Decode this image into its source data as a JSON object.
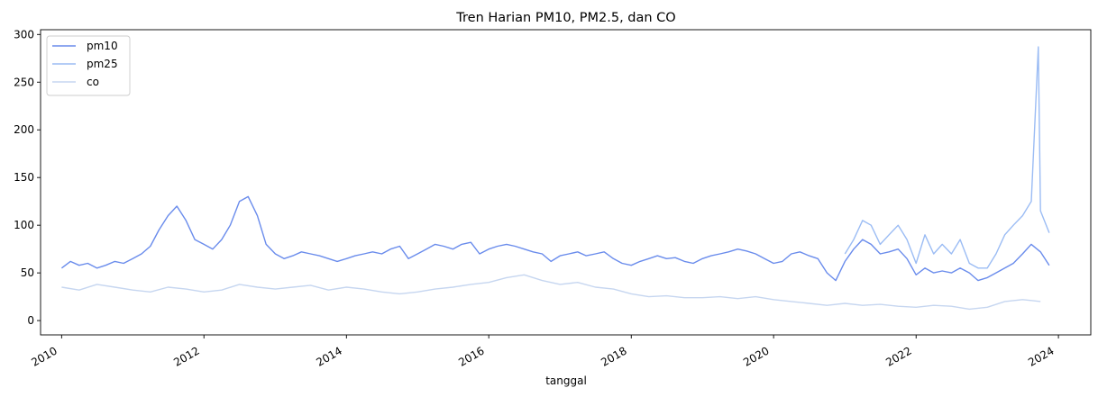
{
  "chart_data": {
    "type": "line",
    "title": "Tren Harian PM10, PM2.5, dan CO",
    "xlabel": "tanggal",
    "ylabel": "",
    "xlim": [
      "2009-09-15",
      "2024-06-15"
    ],
    "ylim": [
      -15,
      305
    ],
    "x_ticks": [
      "2010",
      "2012",
      "2014",
      "2016",
      "2018",
      "2020",
      "2022",
      "2024"
    ],
    "y_ticks": [
      0,
      50,
      100,
      150,
      200,
      250,
      300
    ],
    "grid": false,
    "legend": {
      "position": "top-left",
      "entries": [
        "pm10",
        "pm25",
        "co"
      ]
    },
    "series": [
      {
        "name": "pm10",
        "color": "#6a8cec",
        "points": [
          [
            "2010-01-01",
            55
          ],
          [
            "2010-02-15",
            62
          ],
          [
            "2010-04-01",
            58
          ],
          [
            "2010-05-15",
            60
          ],
          [
            "2010-07-01",
            55
          ],
          [
            "2010-08-15",
            58
          ],
          [
            "2010-10-01",
            62
          ],
          [
            "2010-11-15",
            60
          ],
          [
            "2011-01-01",
            65
          ],
          [
            "2011-02-15",
            70
          ],
          [
            "2011-04-01",
            78
          ],
          [
            "2011-05-15",
            95
          ],
          [
            "2011-07-01",
            110
          ],
          [
            "2011-08-15",
            120
          ],
          [
            "2011-10-01",
            105
          ],
          [
            "2011-11-15",
            85
          ],
          [
            "2012-01-01",
            80
          ],
          [
            "2012-02-15",
            75
          ],
          [
            "2012-04-01",
            85
          ],
          [
            "2012-05-15",
            100
          ],
          [
            "2012-07-01",
            125
          ],
          [
            "2012-08-15",
            130
          ],
          [
            "2012-10-01",
            110
          ],
          [
            "2012-11-15",
            80
          ],
          [
            "2013-01-01",
            70
          ],
          [
            "2013-02-15",
            65
          ],
          [
            "2013-04-01",
            68
          ],
          [
            "2013-05-15",
            72
          ],
          [
            "2013-07-01",
            70
          ],
          [
            "2013-08-15",
            68
          ],
          [
            "2013-10-01",
            65
          ],
          [
            "2013-11-15",
            62
          ],
          [
            "2014-01-01",
            65
          ],
          [
            "2014-02-15",
            68
          ],
          [
            "2014-04-01",
            70
          ],
          [
            "2014-05-15",
            72
          ],
          [
            "2014-07-01",
            70
          ],
          [
            "2014-08-15",
            75
          ],
          [
            "2014-10-01",
            78
          ],
          [
            "2014-11-15",
            65
          ],
          [
            "2015-01-01",
            70
          ],
          [
            "2015-02-15",
            75
          ],
          [
            "2015-04-01",
            80
          ],
          [
            "2015-05-15",
            78
          ],
          [
            "2015-07-01",
            75
          ],
          [
            "2015-08-15",
            80
          ],
          [
            "2015-10-01",
            82
          ],
          [
            "2015-11-15",
            70
          ],
          [
            "2016-01-01",
            75
          ],
          [
            "2016-02-15",
            78
          ],
          [
            "2016-04-01",
            80
          ],
          [
            "2016-05-15",
            78
          ],
          [
            "2016-07-01",
            75
          ],
          [
            "2016-08-15",
            72
          ],
          [
            "2016-10-01",
            70
          ],
          [
            "2016-11-15",
            62
          ],
          [
            "2017-01-01",
            68
          ],
          [
            "2017-02-15",
            70
          ],
          [
            "2017-04-01",
            72
          ],
          [
            "2017-05-15",
            68
          ],
          [
            "2017-07-01",
            70
          ],
          [
            "2017-08-15",
            72
          ],
          [
            "2017-10-01",
            65
          ],
          [
            "2017-11-15",
            60
          ],
          [
            "2018-01-01",
            58
          ],
          [
            "2018-02-15",
            62
          ],
          [
            "2018-04-01",
            65
          ],
          [
            "2018-05-15",
            68
          ],
          [
            "2018-07-01",
            65
          ],
          [
            "2018-08-15",
            66
          ],
          [
            "2018-10-01",
            62
          ],
          [
            "2018-11-15",
            60
          ],
          [
            "2019-01-01",
            65
          ],
          [
            "2019-02-15",
            68
          ],
          [
            "2019-04-01",
            70
          ],
          [
            "2019-05-15",
            72
          ],
          [
            "2019-07-01",
            75
          ],
          [
            "2019-08-15",
            73
          ],
          [
            "2019-10-01",
            70
          ],
          [
            "2019-11-15",
            65
          ],
          [
            "2020-01-01",
            60
          ],
          [
            "2020-02-15",
            62
          ],
          [
            "2020-04-01",
            70
          ],
          [
            "2020-05-15",
            72
          ],
          [
            "2020-07-01",
            68
          ],
          [
            "2020-08-15",
            65
          ],
          [
            "2020-10-01",
            50
          ],
          [
            "2020-11-15",
            42
          ],
          [
            "2021-01-01",
            62
          ],
          [
            "2021-02-15",
            75
          ],
          [
            "2021-04-01",
            85
          ],
          [
            "2021-05-15",
            80
          ],
          [
            "2021-07-01",
            70
          ],
          [
            "2021-08-15",
            72
          ],
          [
            "2021-10-01",
            75
          ],
          [
            "2021-11-15",
            65
          ],
          [
            "2022-01-01",
            48
          ],
          [
            "2022-02-15",
            55
          ],
          [
            "2022-04-01",
            50
          ],
          [
            "2022-05-15",
            52
          ],
          [
            "2022-07-01",
            50
          ],
          [
            "2022-08-15",
            55
          ],
          [
            "2022-10-01",
            50
          ],
          [
            "2022-11-15",
            42
          ],
          [
            "2023-01-01",
            45
          ],
          [
            "2023-02-15",
            50
          ],
          [
            "2023-04-01",
            55
          ],
          [
            "2023-05-15",
            60
          ],
          [
            "2023-07-01",
            70
          ],
          [
            "2023-08-15",
            80
          ],
          [
            "2023-10-01",
            72
          ],
          [
            "2023-11-15",
            58
          ]
        ]
      },
      {
        "name": "pm25",
        "color": "#9bbcf4",
        "points": [
          [
            "2021-01-01",
            70
          ],
          [
            "2021-02-15",
            85
          ],
          [
            "2021-04-01",
            105
          ],
          [
            "2021-05-15",
            100
          ],
          [
            "2021-07-01",
            80
          ],
          [
            "2021-08-15",
            90
          ],
          [
            "2021-10-01",
            100
          ],
          [
            "2021-11-15",
            85
          ],
          [
            "2022-01-01",
            60
          ],
          [
            "2022-02-15",
            90
          ],
          [
            "2022-04-01",
            70
          ],
          [
            "2022-05-15",
            80
          ],
          [
            "2022-07-01",
            70
          ],
          [
            "2022-08-15",
            85
          ],
          [
            "2022-10-01",
            60
          ],
          [
            "2022-11-15",
            55
          ],
          [
            "2023-01-01",
            55
          ],
          [
            "2023-02-15",
            70
          ],
          [
            "2023-04-01",
            90
          ],
          [
            "2023-05-15",
            100
          ],
          [
            "2023-07-01",
            110
          ],
          [
            "2023-08-15",
            125
          ],
          [
            "2023-09-20",
            287
          ],
          [
            "2023-10-01",
            115
          ],
          [
            "2023-11-15",
            92
          ]
        ]
      },
      {
        "name": "co",
        "color": "#c6d6f0",
        "points": [
          [
            "2010-01-01",
            35
          ],
          [
            "2010-04-01",
            32
          ],
          [
            "2010-07-01",
            38
          ],
          [
            "2010-10-01",
            35
          ],
          [
            "2011-01-01",
            32
          ],
          [
            "2011-04-01",
            30
          ],
          [
            "2011-07-01",
            35
          ],
          [
            "2011-10-01",
            33
          ],
          [
            "2012-01-01",
            30
          ],
          [
            "2012-04-01",
            32
          ],
          [
            "2012-07-01",
            38
          ],
          [
            "2012-10-01",
            35
          ],
          [
            "2013-01-01",
            33
          ],
          [
            "2013-04-01",
            35
          ],
          [
            "2013-07-01",
            37
          ],
          [
            "2013-10-01",
            32
          ],
          [
            "2014-01-01",
            35
          ],
          [
            "2014-04-01",
            33
          ],
          [
            "2014-07-01",
            30
          ],
          [
            "2014-10-01",
            28
          ],
          [
            "2015-01-01",
            30
          ],
          [
            "2015-04-01",
            33
          ],
          [
            "2015-07-01",
            35
          ],
          [
            "2015-10-01",
            38
          ],
          [
            "2016-01-01",
            40
          ],
          [
            "2016-04-01",
            45
          ],
          [
            "2016-07-01",
            48
          ],
          [
            "2016-10-01",
            42
          ],
          [
            "2017-01-01",
            38
          ],
          [
            "2017-04-01",
            40
          ],
          [
            "2017-07-01",
            35
          ],
          [
            "2017-10-01",
            33
          ],
          [
            "2018-01-01",
            28
          ],
          [
            "2018-04-01",
            25
          ],
          [
            "2018-07-01",
            26
          ],
          [
            "2018-10-01",
            24
          ],
          [
            "2019-01-01",
            24
          ],
          [
            "2019-04-01",
            25
          ],
          [
            "2019-07-01",
            23
          ],
          [
            "2019-10-01",
            25
          ],
          [
            "2020-01-01",
            22
          ],
          [
            "2020-04-01",
            20
          ],
          [
            "2020-07-01",
            18
          ],
          [
            "2020-10-01",
            16
          ],
          [
            "2021-01-01",
            18
          ],
          [
            "2021-04-01",
            16
          ],
          [
            "2021-07-01",
            17
          ],
          [
            "2021-10-01",
            15
          ],
          [
            "2022-01-01",
            14
          ],
          [
            "2022-04-01",
            16
          ],
          [
            "2022-07-01",
            15
          ],
          [
            "2022-10-01",
            12
          ],
          [
            "2023-01-01",
            14
          ],
          [
            "2023-04-01",
            20
          ],
          [
            "2023-07-01",
            22
          ],
          [
            "2023-10-01",
            20
          ]
        ]
      }
    ]
  }
}
